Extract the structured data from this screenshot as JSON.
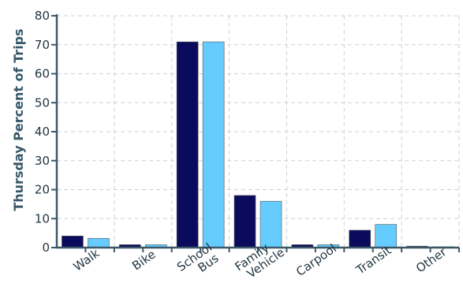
{
  "chart_data": {
    "type": "bar",
    "title": "",
    "xlabel": "",
    "ylabel": "Thursday Percent of Trips",
    "ylim": [
      0,
      80
    ],
    "yticks": [
      0,
      10,
      20,
      30,
      40,
      50,
      60,
      70,
      80
    ],
    "grid": true,
    "legend": "none",
    "categories": [
      [
        "Walk"
      ],
      [
        "Bike"
      ],
      [
        "School",
        "Bus"
      ],
      [
        "Family",
        "Vehicle"
      ],
      [
        "Carpool"
      ],
      [
        "Transit"
      ],
      [
        "Other"
      ]
    ],
    "series": [
      {
        "color": "#0b0b5e",
        "values": [
          4,
          1,
          71,
          18,
          1,
          6,
          0.5
        ]
      },
      {
        "color": "#66ccff",
        "values": [
          3.2,
          1,
          71,
          16,
          1,
          8,
          0.3
        ]
      }
    ]
  }
}
